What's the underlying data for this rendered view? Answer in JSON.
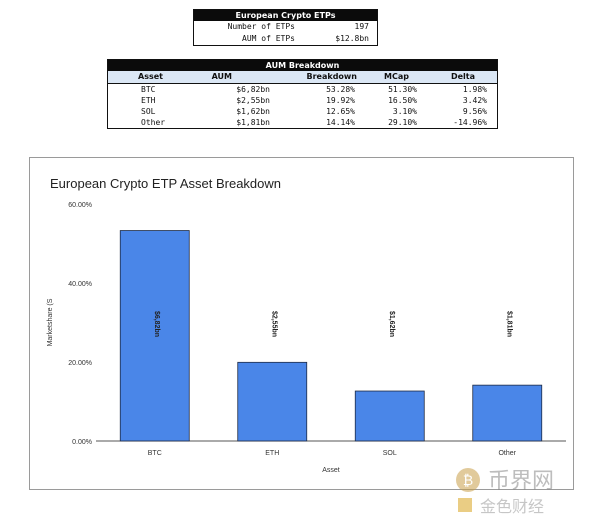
{
  "etps_table": {
    "title": "European Crypto ETPs",
    "rows": [
      {
        "label": "Number of ETPs",
        "value": "197"
      },
      {
        "label": "AUM of ETPs",
        "value": "$12.8bn"
      }
    ]
  },
  "aum_table": {
    "title": "AUM Breakdown",
    "headers": [
      "Asset",
      "AUM",
      "Breakdown",
      "MCap",
      "Delta"
    ],
    "rows": [
      [
        "BTC",
        "$6,82bn",
        "53.28%",
        "51.30%",
        "1.98%"
      ],
      [
        "ETH",
        "$2,55bn",
        "19.92%",
        "16.50%",
        "3.42%"
      ],
      [
        "SOL",
        "$1,62bn",
        "12.65%",
        "3.10%",
        "9.56%"
      ],
      [
        "Other",
        "$1,81bn",
        "14.14%",
        "29.10%",
        "-14.96%"
      ]
    ]
  },
  "chart_data": {
    "type": "bar",
    "title": "European Crypto ETP Asset Breakdown",
    "xlabel": "Asset",
    "ylabel": "Marketshare (S",
    "categories": [
      "BTC",
      "ETH",
      "SOL",
      "Other"
    ],
    "values": [
      53.28,
      19.92,
      12.65,
      14.14
    ],
    "data_labels": [
      "$6,82bn",
      "$2,55bn",
      "$1,62bn",
      "$1,81bn"
    ],
    "ylim": [
      0,
      60
    ],
    "yticks": [
      0,
      20,
      40,
      60
    ],
    "ytick_labels": [
      "0.00%",
      "20.00%",
      "40.00%",
      "60.00%"
    ],
    "bar_color": "#4a86e8",
    "grid": false,
    "legend": "none"
  },
  "watermark": {
    "line1": "币界网",
    "line2": "金色财经"
  }
}
